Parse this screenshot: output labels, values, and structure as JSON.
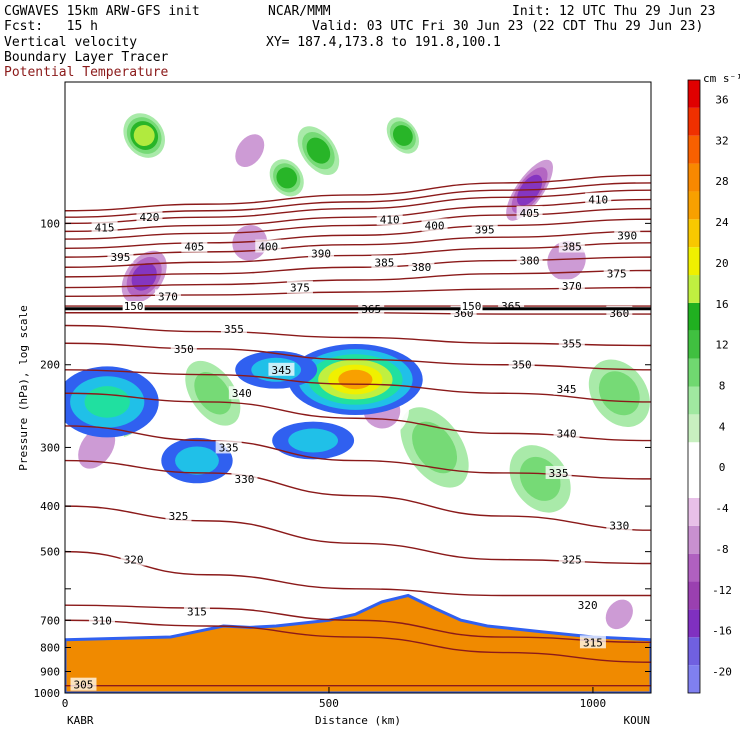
{
  "header": {
    "model": "CGWAVES 15km ARW-GFS init",
    "center": "NCAR/MMM",
    "init": "Init: 12 UTC Thu 29 Jun 23",
    "fcst": "Fcst:   15 h",
    "valid": "Valid: 03 UTC Fri 30 Jun 23 (22 CDT Thu 29 Jun 23)",
    "field1": "Vertical velocity",
    "xy": "XY= 187.4,173.8 to 191.8,100.1",
    "field2": "Boundary Layer Tracer",
    "field3": "Potential Temperature",
    "field3_color": "#8b1a1a"
  },
  "chart_data": {
    "type": "heatmap",
    "title": "",
    "xlabel": "Distance (km)",
    "ylabel": "Pressure (hPa), log scale",
    "xlim": [
      0,
      1110
    ],
    "ylim": [
      1000,
      50
    ],
    "yscale": "log",
    "x_ticks": [
      0,
      500,
      1000
    ],
    "x_tick_labels": [
      "0",
      "500",
      "1000"
    ],
    "y_ticks": [
      100,
      200,
      300,
      400,
      500,
      600,
      700,
      800,
      900,
      1000
    ],
    "y_tick_labels": [
      "100",
      "200",
      "300",
      "400",
      "500",
      "",
      "700",
      "800",
      "900",
      "1000"
    ],
    "left_station": "KABR",
    "right_station": "KOUN",
    "colorbar": {
      "units": "cm s⁻¹",
      "levels": [
        -20,
        -16,
        -12,
        -8,
        -4,
        0,
        4,
        8,
        12,
        16,
        20,
        24,
        28,
        32,
        36
      ],
      "level_labels": [
        "-20",
        "-16",
        "-12",
        "-8",
        "-4",
        "0",
        "4",
        "8",
        "12",
        "16",
        "20",
        "24",
        "28",
        "32",
        "36"
      ],
      "colors_bottom_to_top": [
        "#8080f0",
        "#7060e0",
        "#8030c0",
        "#9a40b0",
        "#b060c0",
        "#c890d0",
        "#e8c0e8",
        "#ffffff",
        "#ffffff",
        "#c8f0c0",
        "#a0e8a0",
        "#70d870",
        "#40c040",
        "#20b020",
        "#c0f040",
        "#f0f000",
        "#f8c800",
        "#f8a000",
        "#f88800",
        "#f86000",
        "#f03000",
        "#e00000"
      ]
    },
    "theta_contours": [
      {
        "value": 305,
        "p": [
          965,
          965,
          965,
          965,
          965
        ]
      },
      {
        "value": 310,
        "p": [
          700,
          720,
          760,
          820,
          860
        ]
      },
      {
        "value": 315,
        "p": [
          650,
          660,
          700,
          760,
          780
        ]
      },
      {
        "value": 320,
        "p": [
          500,
          560,
          600,
          620,
          620
        ]
      },
      {
        "value": 325,
        "p": [
          400,
          430,
          480,
          520,
          530
        ]
      },
      {
        "value": 330,
        "p": [
          320,
          340,
          380,
          420,
          450
        ]
      },
      {
        "value": 335,
        "p": [
          270,
          290,
          320,
          340,
          350
        ]
      },
      {
        "value": 340,
        "p": [
          230,
          240,
          260,
          280,
          290
        ]
      },
      {
        "value": 345,
        "p": [
          205,
          210,
          220,
          230,
          240
        ]
      },
      {
        "value": 350,
        "p": [
          180,
          185,
          195,
          200,
          205
        ]
      },
      {
        "value": 355,
        "p": [
          165,
          170,
          175,
          180,
          182
        ]
      },
      {
        "value": 360,
        "p": [
          155,
          155,
          155,
          156,
          156
        ]
      },
      {
        "value": 365,
        "p": [
          150,
          150,
          150,
          150,
          150
        ]
      },
      {
        "value": 370,
        "p": [
          143,
          142,
          140,
          138,
          137
        ]
      },
      {
        "value": 375,
        "p": [
          137,
          135,
          132,
          128,
          126
        ]
      },
      {
        "value": 380,
        "p": [
          130,
          128,
          124,
          120,
          118
        ]
      },
      {
        "value": 385,
        "p": [
          124,
          121,
          117,
          113,
          110
        ]
      },
      {
        "value": 390,
        "p": [
          118,
          115,
          111,
          107,
          104
        ]
      },
      {
        "value": 395,
        "p": [
          113,
          110,
          106,
          101,
          98
        ]
      },
      {
        "value": 400,
        "p": [
          108,
          105,
          101,
          96,
          93
        ]
      },
      {
        "value": 405,
        "p": [
          104,
          101,
          97,
          92,
          89
        ]
      },
      {
        "value": 410,
        "p": [
          100,
          97,
          93,
          88,
          85
        ]
      },
      {
        "value": 415,
        "p": [
          97,
          94,
          90,
          85,
          82
        ]
      },
      {
        "value": 420,
        "p": [
          94,
          91,
          87,
          82,
          79
        ]
      }
    ],
    "theta_x": [
      0,
      270,
      550,
      830,
      1110
    ],
    "theta_labels": [
      {
        "text": "305",
        "x": 35,
        "p": 960
      },
      {
        "text": "310",
        "x": 70,
        "p": 700
      },
      {
        "text": "315",
        "x": 250,
        "p": 670
      },
      {
        "text": "315",
        "x": 1000,
        "p": 780
      },
      {
        "text": "320",
        "x": 130,
        "p": 520
      },
      {
        "text": "320",
        "x": 990,
        "p": 650
      },
      {
        "text": "325",
        "x": 215,
        "p": 420
      },
      {
        "text": "325",
        "x": 960,
        "p": 520
      },
      {
        "text": "330",
        "x": 340,
        "p": 350
      },
      {
        "text": "330",
        "x": 1050,
        "p": 440
      },
      {
        "text": "335",
        "x": 310,
        "p": 300
      },
      {
        "text": "335",
        "x": 935,
        "p": 340
      },
      {
        "text": "340",
        "x": 335,
        "p": 230
      },
      {
        "text": "340",
        "x": 950,
        "p": 280
      },
      {
        "text": "345",
        "x": 410,
        "p": 205
      },
      {
        "text": "345",
        "x": 950,
        "p": 225
      },
      {
        "text": "350",
        "x": 225,
        "p": 185
      },
      {
        "text": "350",
        "x": 865,
        "p": 200
      },
      {
        "text": "355",
        "x": 320,
        "p": 168
      },
      {
        "text": "355",
        "x": 960,
        "p": 180
      },
      {
        "text": "360",
        "x": 755,
        "p": 155
      },
      {
        "text": "360",
        "x": 1050,
        "p": 155
      },
      {
        "text": "365",
        "x": 580,
        "p": 152
      },
      {
        "text": "365",
        "x": 845,
        "p": 150
      },
      {
        "text": "370",
        "x": 195,
        "p": 143
      },
      {
        "text": "370",
        "x": 960,
        "p": 136
      },
      {
        "text": "375",
        "x": 445,
        "p": 137
      },
      {
        "text": "375",
        "x": 1045,
        "p": 128
      },
      {
        "text": "380",
        "x": 675,
        "p": 124
      },
      {
        "text": "380",
        "x": 880,
        "p": 120
      },
      {
        "text": "385",
        "x": 605,
        "p": 121
      },
      {
        "text": "385",
        "x": 960,
        "p": 112
      },
      {
        "text": "390",
        "x": 485,
        "p": 116
      },
      {
        "text": "390",
        "x": 1065,
        "p": 106
      },
      {
        "text": "395",
        "x": 105,
        "p": 118
      },
      {
        "text": "395",
        "x": 795,
        "p": 103
      },
      {
        "text": "400",
        "x": 385,
        "p": 112
      },
      {
        "text": "400",
        "x": 700,
        "p": 101
      },
      {
        "text": "405",
        "x": 245,
        "p": 112
      },
      {
        "text": "405",
        "x": 880,
        "p": 95
      },
      {
        "text": "410",
        "x": 615,
        "p": 98
      },
      {
        "text": "410",
        "x": 1010,
        "p": 89
      },
      {
        "text": "415",
        "x": 75,
        "p": 102
      },
      {
        "text": "420",
        "x": 160,
        "p": 97
      }
    ],
    "tropopause_p": 152,
    "tropopause_labels": [
      {
        "text": "150",
        "x": 130,
        "p": 150
      },
      {
        "text": "150",
        "x": 770,
        "p": 150
      }
    ],
    "terrain": [
      {
        "x": 0,
        "p": 770
      },
      {
        "x": 100,
        "p": 765
      },
      {
        "x": 200,
        "p": 760
      },
      {
        "x": 250,
        "p": 740
      },
      {
        "x": 300,
        "p": 720
      },
      {
        "x": 350,
        "p": 725
      },
      {
        "x": 400,
        "p": 720
      },
      {
        "x": 450,
        "p": 710
      },
      {
        "x": 500,
        "p": 700
      },
      {
        "x": 550,
        "p": 680
      },
      {
        "x": 600,
        "p": 640
      },
      {
        "x": 650,
        "p": 620
      },
      {
        "x": 700,
        "p": 660
      },
      {
        "x": 750,
        "p": 700
      },
      {
        "x": 800,
        "p": 720
      },
      {
        "x": 900,
        "p": 740
      },
      {
        "x": 1000,
        "p": 760
      },
      {
        "x": 1110,
        "p": 770
      }
    ],
    "updraft_cells": [
      {
        "x": 150,
        "p": 65,
        "rx": 25,
        "rp": 0.08,
        "w": 14
      },
      {
        "x": 420,
        "p": 80,
        "rx": 18,
        "rp": 0.06,
        "w": 10
      },
      {
        "x": 480,
        "p": 70,
        "rx": 20,
        "rp": 0.1,
        "w": 12
      },
      {
        "x": 640,
        "p": 65,
        "rx": 15,
        "rp": 0.06,
        "w": 10
      },
      {
        "x": 280,
        "p": 230,
        "rx": 30,
        "rp": 0.15,
        "w": 8
      },
      {
        "x": 700,
        "p": 300,
        "rx": 40,
        "rp": 0.2,
        "w": 8
      },
      {
        "x": 900,
        "p": 350,
        "rx": 40,
        "rp": 0.15,
        "w": 8
      },
      {
        "x": 100,
        "p": 250,
        "rx": 40,
        "rp": 0.1,
        "w": 6
      },
      {
        "x": 1050,
        "p": 230,
        "rx": 40,
        "rp": 0.15,
        "w": 8
      }
    ],
    "downdraft_cells": [
      {
        "x": 150,
        "p": 130,
        "rx": 30,
        "rp": 0.15,
        "w": -14
      },
      {
        "x": 880,
        "p": 85,
        "rx": 18,
        "rp": 0.2,
        "w": -14
      },
      {
        "x": 350,
        "p": 110,
        "rx": 35,
        "rp": 0.1,
        "w": -8
      },
      {
        "x": 950,
        "p": 120,
        "rx": 40,
        "rp": 0.12,
        "w": -8
      },
      {
        "x": 350,
        "p": 70,
        "rx": 20,
        "rp": 0.1,
        "w": -8
      },
      {
        "x": 1050,
        "p": 680,
        "rx": 20,
        "rp": 0.08,
        "w": -8
      },
      {
        "x": 60,
        "p": 300,
        "rx": 30,
        "rp": 0.15,
        "w": -6
      },
      {
        "x": 600,
        "p": 250,
        "rx": 40,
        "rp": 0.1,
        "w": -6
      }
    ],
    "tracer_blobs": [
      {
        "x": 80,
        "p": 240,
        "rx": 90,
        "rp": 0.15,
        "v": 12
      },
      {
        "x": 250,
        "p": 320,
        "rx": 60,
        "rp": 0.08,
        "v": 8
      },
      {
        "x": 550,
        "p": 215,
        "rx": 120,
        "rp": 0.15,
        "v": 24
      },
      {
        "x": 400,
        "p": 205,
        "rx": 70,
        "rp": 0.06,
        "v": 8
      },
      {
        "x": 470,
        "p": 290,
        "rx": 70,
        "rp": 0.06,
        "v": 8
      }
    ]
  }
}
